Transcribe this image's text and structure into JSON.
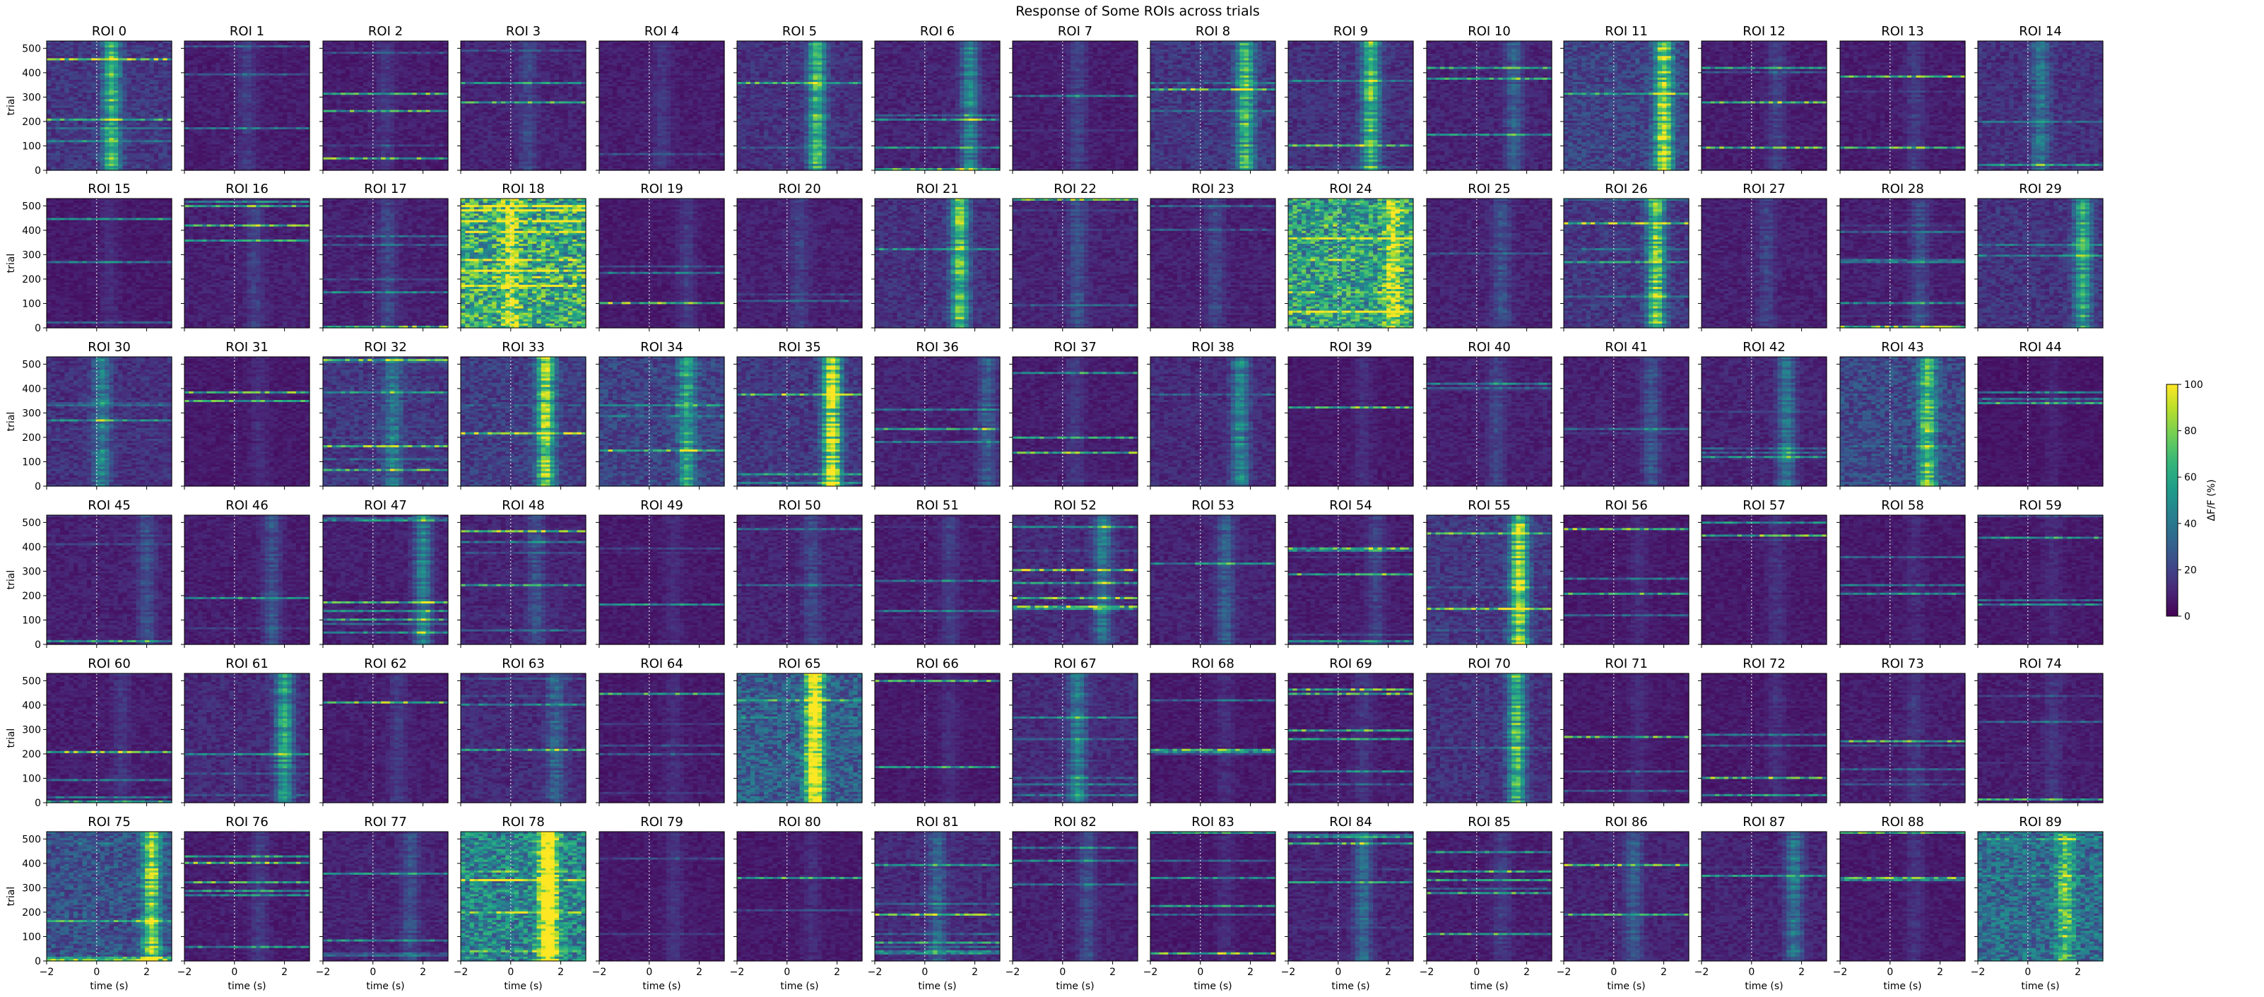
{
  "chart_data": {
    "type": "heatmap",
    "title": "Response of Some ROIs across trials",
    "xlabel": "time (s)",
    "ylabel": "trial",
    "xlim": [
      -2,
      3
    ],
    "ylim": [
      0,
      530
    ],
    "xticks": [
      "−2",
      "0",
      "2"
    ],
    "yticks": [
      "0",
      "100",
      "200",
      "300",
      "400",
      "500"
    ],
    "stimulus_marker_x": 0,
    "colormap": "viridis",
    "colorbar": {
      "label": "ΔF/F (%)",
      "range": [
        0,
        100
      ],
      "ticks": [
        "0",
        "20",
        "40",
        "60",
        "80",
        "100"
      ]
    },
    "grid": {
      "rows": 6,
      "cols": 15
    },
    "panels": [
      {
        "name": "ROI 0",
        "level": 0.16,
        "peak_time": 0.6,
        "peak_strength": 0.5
      },
      {
        "name": "ROI 1",
        "level": 0.08,
        "peak_time": 0.5,
        "peak_strength": 0.1
      },
      {
        "name": "ROI 2",
        "level": 0.08,
        "peak_time": 0.5,
        "peak_strength": 0.08
      },
      {
        "name": "ROI 3",
        "level": 0.1,
        "peak_time": 0.7,
        "peak_strength": 0.12
      },
      {
        "name": "ROI 4",
        "level": 0.08,
        "peak_time": 0.5,
        "peak_strength": 0.08
      },
      {
        "name": "ROI 5",
        "level": 0.14,
        "peak_time": 1.2,
        "peak_strength": 0.55
      },
      {
        "name": "ROI 6",
        "level": 0.1,
        "peak_time": 1.8,
        "peak_strength": 0.35
      },
      {
        "name": "ROI 7",
        "level": 0.08,
        "peak_time": 0.6,
        "peak_strength": 0.12
      },
      {
        "name": "ROI 8",
        "level": 0.16,
        "peak_time": 1.8,
        "peak_strength": 0.5
      },
      {
        "name": "ROI 9",
        "level": 0.14,
        "peak_time": 1.3,
        "peak_strength": 0.55
      },
      {
        "name": "ROI 10",
        "level": 0.1,
        "peak_time": 1.5,
        "peak_strength": 0.2
      },
      {
        "name": "ROI 11",
        "level": 0.2,
        "peak_time": 2.0,
        "peak_strength": 0.7
      },
      {
        "name": "ROI 12",
        "level": 0.08,
        "peak_time": 1.0,
        "peak_strength": 0.12
      },
      {
        "name": "ROI 13",
        "level": 0.08,
        "peak_time": 1.0,
        "peak_strength": 0.1
      },
      {
        "name": "ROI 14",
        "level": 0.14,
        "peak_time": 0.5,
        "peak_strength": 0.25
      },
      {
        "name": "ROI 15",
        "level": 0.07,
        "peak_time": 0.5,
        "peak_strength": 0.06
      },
      {
        "name": "ROI 16",
        "level": 0.09,
        "peak_time": 0.8,
        "peak_strength": 0.1
      },
      {
        "name": "ROI 17",
        "level": 0.09,
        "peak_time": 0.6,
        "peak_strength": 0.12
      },
      {
        "name": "ROI 18",
        "level": 0.6,
        "peak_time": 0.0,
        "peak_strength": 0.3
      },
      {
        "name": "ROI 19",
        "level": 0.07,
        "peak_time": 1.5,
        "peak_strength": 0.1
      },
      {
        "name": "ROI 20",
        "level": 0.09,
        "peak_time": 0.5,
        "peak_strength": 0.1
      },
      {
        "name": "ROI 21",
        "level": 0.14,
        "peak_time": 1.4,
        "peak_strength": 0.6
      },
      {
        "name": "ROI 22",
        "level": 0.1,
        "peak_time": 0.6,
        "peak_strength": 0.15
      },
      {
        "name": "ROI 23",
        "level": 0.09,
        "peak_time": 0.6,
        "peak_strength": 0.12
      },
      {
        "name": "ROI 24",
        "level": 0.55,
        "peak_time": 2.2,
        "peak_strength": 0.4
      },
      {
        "name": "ROI 25",
        "level": 0.1,
        "peak_time": 1.0,
        "peak_strength": 0.15
      },
      {
        "name": "ROI 26",
        "level": 0.16,
        "peak_time": 1.7,
        "peak_strength": 0.6
      },
      {
        "name": "ROI 27",
        "level": 0.09,
        "peak_time": 0.6,
        "peak_strength": 0.12
      },
      {
        "name": "ROI 28",
        "level": 0.09,
        "peak_time": 1.2,
        "peak_strength": 0.15
      },
      {
        "name": "ROI 29",
        "level": 0.15,
        "peak_time": 2.2,
        "peak_strength": 0.45
      },
      {
        "name": "ROI 30",
        "level": 0.14,
        "peak_time": 0.2,
        "peak_strength": 0.3
      },
      {
        "name": "ROI 31",
        "level": 0.07,
        "peak_time": 1.0,
        "peak_strength": 0.06
      },
      {
        "name": "ROI 32",
        "level": 0.16,
        "peak_time": 0.8,
        "peak_strength": 0.25
      },
      {
        "name": "ROI 33",
        "level": 0.18,
        "peak_time": 1.4,
        "peak_strength": 0.65
      },
      {
        "name": "ROI 34",
        "level": 0.2,
        "peak_time": 1.5,
        "peak_strength": 0.4
      },
      {
        "name": "ROI 35",
        "level": 0.16,
        "peak_time": 1.8,
        "peak_strength": 0.8
      },
      {
        "name": "ROI 36",
        "level": 0.1,
        "peak_time": 2.5,
        "peak_strength": 0.2
      },
      {
        "name": "ROI 37",
        "level": 0.08,
        "peak_time": 0.5,
        "peak_strength": 0.08
      },
      {
        "name": "ROI 38",
        "level": 0.12,
        "peak_time": 1.6,
        "peak_strength": 0.35
      },
      {
        "name": "ROI 39",
        "level": 0.07,
        "peak_time": 1.0,
        "peak_strength": 0.06
      },
      {
        "name": "ROI 40",
        "level": 0.09,
        "peak_time": 0.8,
        "peak_strength": 0.12
      },
      {
        "name": "ROI 41",
        "level": 0.09,
        "peak_time": 1.5,
        "peak_strength": 0.18
      },
      {
        "name": "ROI 42",
        "level": 0.1,
        "peak_time": 1.4,
        "peak_strength": 0.3
      },
      {
        "name": "ROI 43",
        "level": 0.22,
        "peak_time": 1.5,
        "peak_strength": 0.5
      },
      {
        "name": "ROI 44",
        "level": 0.06,
        "peak_time": 1.0,
        "peak_strength": 0.04
      },
      {
        "name": "ROI 45",
        "level": 0.09,
        "peak_time": 2.0,
        "peak_strength": 0.15
      },
      {
        "name": "ROI 46",
        "level": 0.08,
        "peak_time": 1.5,
        "peak_strength": 0.18
      },
      {
        "name": "ROI 47",
        "level": 0.09,
        "peak_time": 2.0,
        "peak_strength": 0.35
      },
      {
        "name": "ROI 48",
        "level": 0.1,
        "peak_time": 1.0,
        "peak_strength": 0.15
      },
      {
        "name": "ROI 49",
        "level": 0.07,
        "peak_time": 1.0,
        "peak_strength": 0.06
      },
      {
        "name": "ROI 50",
        "level": 0.1,
        "peak_time": 1.0,
        "peak_strength": 0.12
      },
      {
        "name": "ROI 51",
        "level": 0.08,
        "peak_time": 1.0,
        "peak_strength": 0.1
      },
      {
        "name": "ROI 52",
        "level": 0.12,
        "peak_time": 1.6,
        "peak_strength": 0.3
      },
      {
        "name": "ROI 53",
        "level": 0.1,
        "peak_time": 1.0,
        "peak_strength": 0.2
      },
      {
        "name": "ROI 54",
        "level": 0.08,
        "peak_time": 1.5,
        "peak_strength": 0.12
      },
      {
        "name": "ROI 55",
        "level": 0.16,
        "peak_time": 1.7,
        "peak_strength": 0.7
      },
      {
        "name": "ROI 56",
        "level": 0.07,
        "peak_time": 1.0,
        "peak_strength": 0.06
      },
      {
        "name": "ROI 57",
        "level": 0.07,
        "peak_time": 1.0,
        "peak_strength": 0.08
      },
      {
        "name": "ROI 58",
        "level": 0.07,
        "peak_time": 1.0,
        "peak_strength": 0.05
      },
      {
        "name": "ROI 59",
        "level": 0.07,
        "peak_time": 1.0,
        "peak_strength": 0.05
      },
      {
        "name": "ROI 60",
        "level": 0.08,
        "peak_time": 1.0,
        "peak_strength": 0.08
      },
      {
        "name": "ROI 61",
        "level": 0.12,
        "peak_time": 2.0,
        "peak_strength": 0.45
      },
      {
        "name": "ROI 62",
        "level": 0.08,
        "peak_time": 1.0,
        "peak_strength": 0.1
      },
      {
        "name": "ROI 63",
        "level": 0.12,
        "peak_time": 1.8,
        "peak_strength": 0.2
      },
      {
        "name": "ROI 64",
        "level": 0.07,
        "peak_time": 1.0,
        "peak_strength": 0.06
      },
      {
        "name": "ROI 65",
        "level": 0.3,
        "peak_time": 1.1,
        "peak_strength": 0.85
      },
      {
        "name": "ROI 66",
        "level": 0.07,
        "peak_time": 1.0,
        "peak_strength": 0.06
      },
      {
        "name": "ROI 67",
        "level": 0.12,
        "peak_time": 0.6,
        "peak_strength": 0.3
      },
      {
        "name": "ROI 68",
        "level": 0.07,
        "peak_time": 1.0,
        "peak_strength": 0.06
      },
      {
        "name": "ROI 69",
        "level": 0.08,
        "peak_time": 1.0,
        "peak_strength": 0.08
      },
      {
        "name": "ROI 70",
        "level": 0.14,
        "peak_time": 1.6,
        "peak_strength": 0.55
      },
      {
        "name": "ROI 71",
        "level": 0.07,
        "peak_time": 1.0,
        "peak_strength": 0.06
      },
      {
        "name": "ROI 72",
        "level": 0.07,
        "peak_time": 1.0,
        "peak_strength": 0.07
      },
      {
        "name": "ROI 73",
        "level": 0.08,
        "peak_time": 1.0,
        "peak_strength": 0.08
      },
      {
        "name": "ROI 74",
        "level": 0.08,
        "peak_time": 1.0,
        "peak_strength": 0.08
      },
      {
        "name": "ROI 75",
        "level": 0.25,
        "peak_time": 2.2,
        "peak_strength": 0.6
      },
      {
        "name": "ROI 76",
        "level": 0.08,
        "peak_time": 1.0,
        "peak_strength": 0.1
      },
      {
        "name": "ROI 77",
        "level": 0.1,
        "peak_time": 1.5,
        "peak_strength": 0.15
      },
      {
        "name": "ROI 78",
        "level": 0.45,
        "peak_time": 1.5,
        "peak_strength": 0.85
      },
      {
        "name": "ROI 79",
        "level": 0.07,
        "peak_time": 1.0,
        "peak_strength": 0.08
      },
      {
        "name": "ROI 80",
        "level": 0.07,
        "peak_time": 1.0,
        "peak_strength": 0.06
      },
      {
        "name": "ROI 81",
        "level": 0.12,
        "peak_time": 0.5,
        "peak_strength": 0.2
      },
      {
        "name": "ROI 82",
        "level": 0.09,
        "peak_time": 1.0,
        "peak_strength": 0.15
      },
      {
        "name": "ROI 83",
        "level": 0.07,
        "peak_time": 1.0,
        "peak_strength": 0.06
      },
      {
        "name": "ROI 84",
        "level": 0.1,
        "peak_time": 1.0,
        "peak_strength": 0.25
      },
      {
        "name": "ROI 85",
        "level": 0.08,
        "peak_time": 1.0,
        "peak_strength": 0.1
      },
      {
        "name": "ROI 86",
        "level": 0.1,
        "peak_time": 0.8,
        "peak_strength": 0.2
      },
      {
        "name": "ROI 87",
        "level": 0.1,
        "peak_time": 1.7,
        "peak_strength": 0.3
      },
      {
        "name": "ROI 88",
        "level": 0.07,
        "peak_time": 1.0,
        "peak_strength": 0.08
      },
      {
        "name": "ROI 89",
        "level": 0.35,
        "peak_time": 1.5,
        "peak_strength": 0.4
      }
    ]
  }
}
